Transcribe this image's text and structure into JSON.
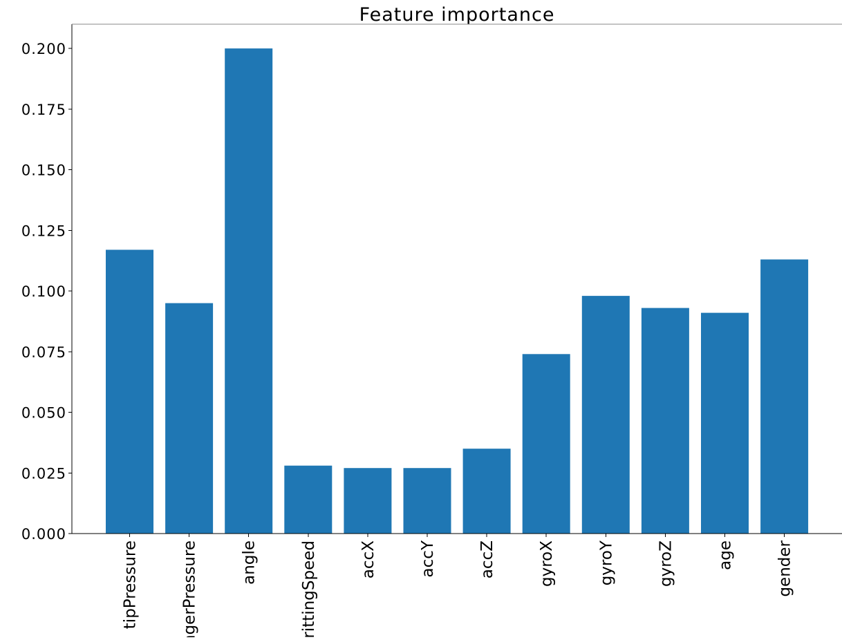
{
  "chart_data": {
    "type": "bar",
    "title": "Feature importance",
    "xlabel": "",
    "ylabel": "",
    "categories": [
      "tipPressure",
      "fingerPressure",
      "angle",
      "writtingSpeed",
      "accX",
      "accY",
      "accZ",
      "gyroX",
      "gyroY",
      "gyroZ",
      "age",
      "gender"
    ],
    "values": [
      0.117,
      0.095,
      0.2,
      0.028,
      0.027,
      0.027,
      0.035,
      0.074,
      0.098,
      0.093,
      0.091,
      0.113
    ],
    "ylim": [
      0,
      0.21
    ],
    "yticks": [
      0.0,
      0.025,
      0.05,
      0.075,
      0.1,
      0.125,
      0.15,
      0.175,
      0.2
    ],
    "ytick_labels": [
      "0.000",
      "0.025",
      "0.050",
      "0.075",
      "0.100",
      "0.125",
      "0.150",
      "0.175",
      "0.200"
    ],
    "bar_color": "#1f77b4",
    "grid": false,
    "legend": "none",
    "x_tick_rotation": "vertical"
  }
}
